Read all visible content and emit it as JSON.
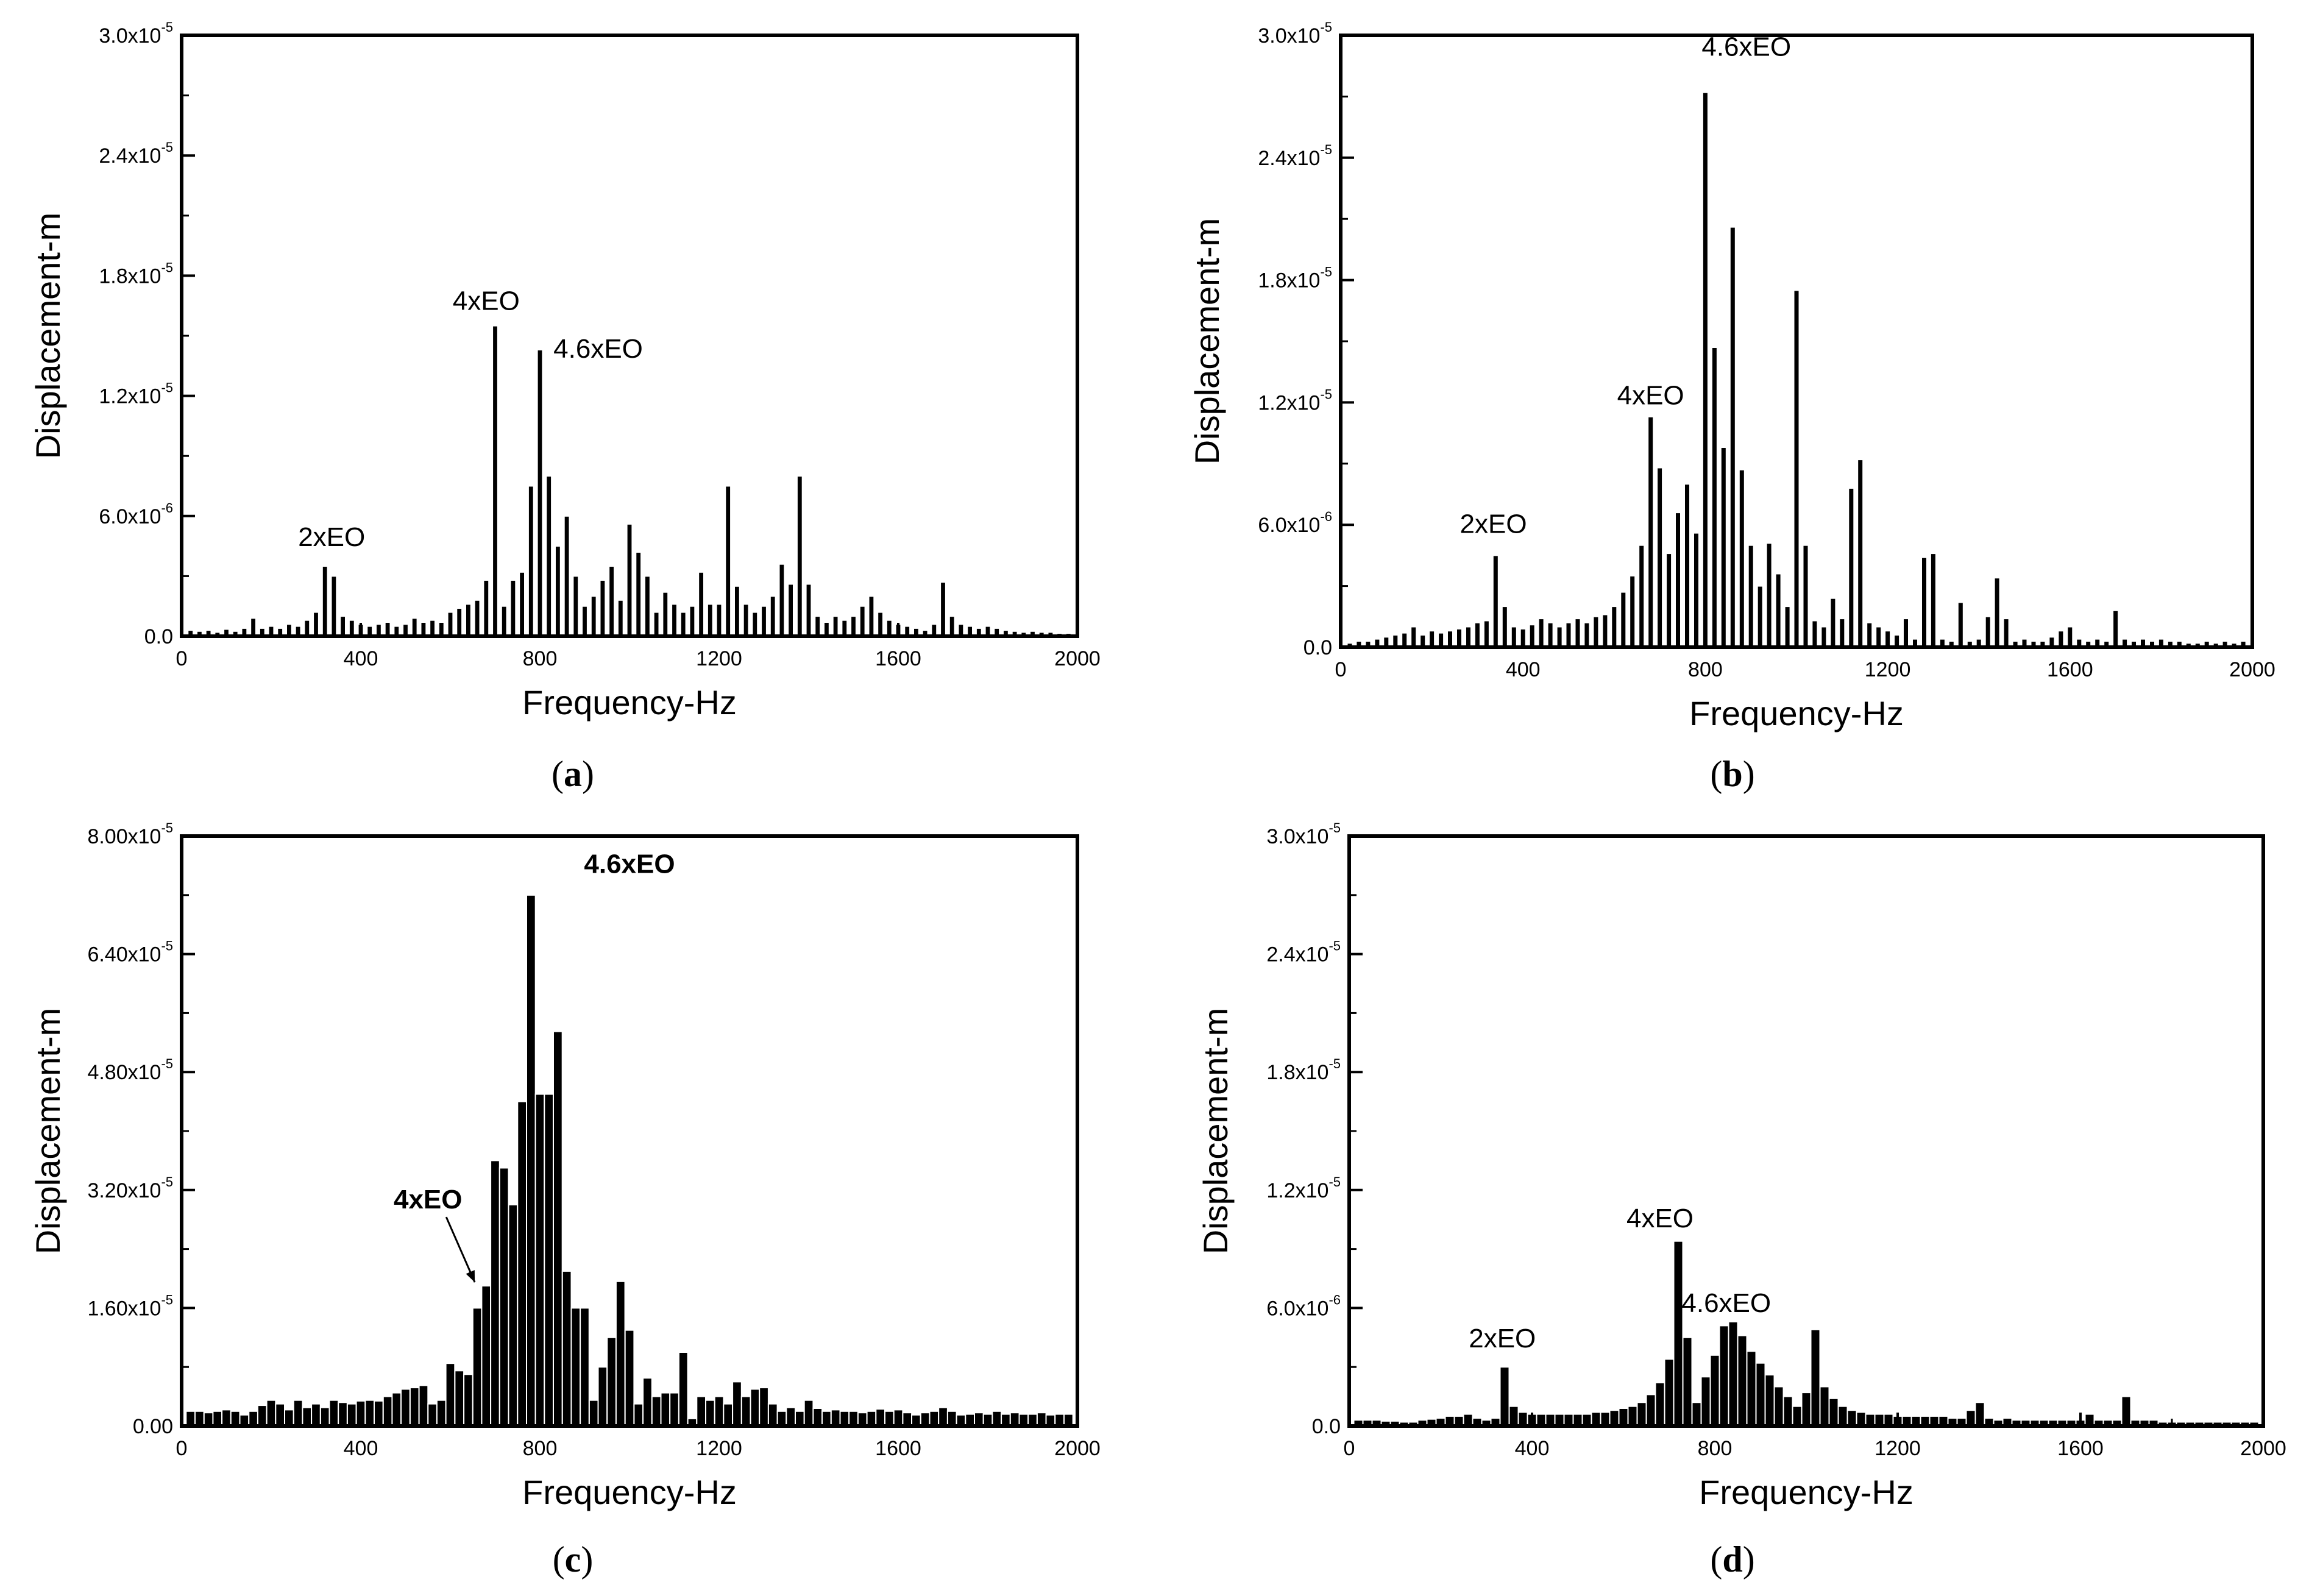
{
  "chart_data": [
    {
      "panel": "a",
      "type": "bar",
      "caption": "a",
      "xlabel": "Frequency-Hz",
      "ylabel": "Displacement-m",
      "xlim": [
        0,
        2000
      ],
      "ylim": [
        0,
        3e-05
      ],
      "xticks": [
        "0",
        "400",
        "800",
        "1200",
        "1600",
        "2000"
      ],
      "yticks": [
        "0.0",
        "6.0x10",
        "1.2x10",
        "1.8x10",
        "2.4x10",
        "3.0x10"
      ],
      "ytick_exponents": [
        "",
        "-6",
        "-5",
        "-5",
        "-5",
        "-5"
      ],
      "bar_width_hz": 12,
      "x": [
        20,
        40,
        60,
        80,
        100,
        120,
        140,
        160,
        180,
        200,
        220,
        240,
        260,
        280,
        300,
        320,
        340,
        360,
        380,
        400,
        420,
        440,
        460,
        480,
        500,
        520,
        540,
        560,
        580,
        600,
        620,
        640,
        660,
        680,
        700,
        720,
        740,
        760,
        780,
        800,
        820,
        840,
        860,
        880,
        900,
        920,
        940,
        960,
        980,
        1000,
        1020,
        1040,
        1060,
        1080,
        1100,
        1120,
        1140,
        1160,
        1180,
        1200,
        1220,
        1240,
        1260,
        1280,
        1300,
        1320,
        1340,
        1360,
        1380,
        1400,
        1420,
        1440,
        1460,
        1480,
        1500,
        1520,
        1540,
        1560,
        1580,
        1600,
        1620,
        1640,
        1660,
        1680,
        1700,
        1720,
        1740,
        1760,
        1780,
        1800,
        1820,
        1840,
        1860,
        1880,
        1900,
        1920,
        1940,
        1960,
        1980
      ],
      "values": [
        3e-07,
        2.5e-07,
        3e-07,
        2e-07,
        3.5e-07,
        2.5e-07,
        4e-07,
        9e-07,
        4e-07,
        5e-07,
        4e-07,
        6e-07,
        5e-07,
        8e-07,
        1.2e-06,
        3.5e-06,
        3e-06,
        1e-06,
        8e-07,
        6e-07,
        5e-07,
        6e-07,
        7e-07,
        5e-07,
        6e-07,
        9e-07,
        7e-07,
        8e-07,
        7e-07,
        1.2e-06,
        1.4e-06,
        1.6e-06,
        1.8e-06,
        2.8e-06,
        1.55e-05,
        1.5e-06,
        2.8e-06,
        3.2e-06,
        7.5e-06,
        1.43e-05,
        8e-06,
        4.5e-06,
        6e-06,
        3e-06,
        1.5e-06,
        2e-06,
        2.8e-06,
        3.5e-06,
        1.8e-06,
        5.6e-06,
        4.2e-06,
        3e-06,
        1.2e-06,
        2.2e-06,
        1.6e-06,
        1.2e-06,
        1.5e-06,
        3.2e-06,
        1.6e-06,
        1.6e-06,
        7.5e-06,
        2.5e-06,
        1.6e-06,
        1.2e-06,
        1.5e-06,
        2e-06,
        3.6e-06,
        2.6e-06,
        8e-06,
        2.6e-06,
        1e-06,
        7e-07,
        1e-06,
        8e-07,
        1e-06,
        1.5e-06,
        2e-06,
        1.2e-06,
        8e-07,
        6e-07,
        5e-07,
        4e-07,
        3e-07,
        6e-07,
        2.7e-06,
        1e-06,
        6e-07,
        5e-07,
        4e-07,
        5e-07,
        4e-07,
        3e-07,
        2.5e-07,
        2e-07,
        2.5e-07,
        2e-07,
        2e-07,
        1.5e-07,
        1.5e-07
      ],
      "annotations": [
        {
          "text": "2xEO",
          "x": 335,
          "y": 4.5e-06
        },
        {
          "text": "4xEO",
          "x": 680,
          "y": 1.63e-05
        },
        {
          "text": "4.6xEO",
          "x": 930,
          "y": 1.39e-05
        }
      ]
    },
    {
      "panel": "b",
      "type": "bar",
      "caption": "b",
      "xlabel": "Frequency-Hz",
      "ylabel": "Displacement-m",
      "xlim": [
        0,
        2000
      ],
      "ylim": [
        0,
        3e-05
      ],
      "xticks": [
        "0",
        "400",
        "800",
        "1200",
        "1600",
        "2000"
      ],
      "yticks": [
        "0.0",
        "6.0x10",
        "1.2x10",
        "1.8x10",
        "2.4x10",
        "3.0x10"
      ],
      "ytick_exponents": [
        "",
        "-6",
        "-5",
        "-5",
        "-5",
        "-5"
      ],
      "bar_width_hz": 12,
      "x": [
        20,
        40,
        60,
        80,
        100,
        120,
        140,
        160,
        180,
        200,
        220,
        240,
        260,
        280,
        300,
        320,
        340,
        360,
        380,
        400,
        420,
        440,
        460,
        480,
        500,
        520,
        540,
        560,
        580,
        600,
        620,
        640,
        660,
        680,
        700,
        720,
        740,
        760,
        780,
        800,
        820,
        840,
        860,
        880,
        900,
        920,
        940,
        960,
        980,
        1000,
        1020,
        1040,
        1060,
        1080,
        1100,
        1120,
        1140,
        1160,
        1180,
        1200,
        1220,
        1240,
        1260,
        1280,
        1300,
        1320,
        1340,
        1360,
        1380,
        1400,
        1420,
        1440,
        1460,
        1480,
        1500,
        1520,
        1540,
        1560,
        1580,
        1600,
        1620,
        1640,
        1660,
        1680,
        1700,
        1720,
        1740,
        1760,
        1780,
        1800,
        1820,
        1840,
        1860,
        1880,
        1900,
        1920,
        1940,
        1960,
        1980
      ],
      "values": [
        2e-07,
        3e-07,
        3e-07,
        4e-07,
        5e-07,
        6e-07,
        7e-07,
        1e-06,
        6e-07,
        8e-07,
        7e-07,
        8e-07,
        9e-07,
        1e-06,
        1.2e-06,
        1.3e-06,
        4.5e-06,
        2e-06,
        1e-06,
        9e-07,
        1.1e-06,
        1.4e-06,
        1.2e-06,
        1e-06,
        1.2e-06,
        1.4e-06,
        1.2e-06,
        1.5e-06,
        1.6e-06,
        2e-06,
        2.7e-06,
        3.5e-06,
        5e-06,
        1.13e-05,
        8.8e-06,
        4.6e-06,
        6.6e-06,
        8e-06,
        5.6e-06,
        2.72e-05,
        1.47e-05,
        9.8e-06,
        2.06e-05,
        8.7e-06,
        5e-06,
        3e-06,
        5.1e-06,
        3.6e-06,
        2e-06,
        1.75e-05,
        5e-06,
        1.3e-06,
        1e-06,
        2.4e-06,
        1.4e-06,
        7.8e-06,
        9.2e-06,
        1.2e-06,
        1e-06,
        8e-07,
        6e-07,
        1.4e-06,
        4e-07,
        4.4e-06,
        4.6e-06,
        4e-07,
        3e-07,
        2.2e-06,
        3e-07,
        4e-07,
        1.5e-06,
        3.4e-06,
        1.4e-06,
        3e-07,
        4e-07,
        3e-07,
        3e-07,
        5e-07,
        8e-07,
        1e-06,
        4e-07,
        3e-07,
        4e-07,
        3e-07,
        1.8e-06,
        4e-07,
        3e-07,
        4e-07,
        3e-07,
        4e-07,
        3e-07,
        3e-07,
        2e-07,
        2e-07,
        3e-07,
        2e-07,
        3e-07,
        2e-07,
        3e-07
      ],
      "annotations": [
        {
          "text": "2xEO",
          "x": 335,
          "y": 5.6e-06
        },
        {
          "text": "4xEO",
          "x": 680,
          "y": 1.19e-05
        },
        {
          "text": "4.6xEO",
          "x": 890,
          "y": 2.9e-05
        }
      ]
    },
    {
      "panel": "c",
      "type": "bar",
      "caption": "c",
      "xlabel": "Frequency-Hz",
      "ylabel": "Displacement-m",
      "xlim": [
        0,
        2000
      ],
      "ylim": [
        0,
        8e-05
      ],
      "xticks": [
        "0",
        "400",
        "800",
        "1200",
        "1600",
        "2000"
      ],
      "yticks": [
        "0.00",
        "1.60x10",
        "3.20x10",
        "4.80x10",
        "6.40x10",
        "8.00x10"
      ],
      "ytick_exponents": [
        "",
        "-5",
        "-5",
        "-5",
        "-5",
        "-5"
      ],
      "bar_width_hz": 20,
      "x": [
        20,
        40,
        60,
        80,
        100,
        120,
        140,
        160,
        180,
        200,
        220,
        240,
        260,
        280,
        300,
        320,
        340,
        360,
        380,
        400,
        420,
        440,
        460,
        480,
        500,
        520,
        540,
        560,
        580,
        600,
        620,
        640,
        660,
        680,
        700,
        720,
        740,
        760,
        780,
        800,
        820,
        840,
        860,
        880,
        900,
        920,
        940,
        960,
        980,
        1000,
        1020,
        1040,
        1060,
        1080,
        1100,
        1120,
        1140,
        1160,
        1180,
        1200,
        1220,
        1240,
        1260,
        1280,
        1300,
        1320,
        1340,
        1360,
        1380,
        1400,
        1420,
        1440,
        1460,
        1480,
        1500,
        1520,
        1540,
        1560,
        1580,
        1600,
        1620,
        1640,
        1660,
        1680,
        1700,
        1720,
        1740,
        1760,
        1780,
        1800,
        1820,
        1840,
        1860,
        1880,
        1900,
        1920,
        1940,
        1960,
        1980
      ],
      "values": [
        2e-06,
        2e-06,
        1.8e-06,
        2e-06,
        2.2e-06,
        2e-06,
        1.5e-06,
        2e-06,
        2.8e-06,
        3.5e-06,
        3e-06,
        2.2e-06,
        3.5e-06,
        2.5e-06,
        3e-06,
        2.5e-06,
        3.5e-06,
        3.2e-06,
        3e-06,
        3.4e-06,
        3.5e-06,
        3.4e-06,
        4e-06,
        4.5e-06,
        5e-06,
        5.2e-06,
        5.5e-06,
        3e-06,
        3.5e-06,
        8.5e-06,
        7.5e-06,
        7e-06,
        1.6e-05,
        1.9e-05,
        3.6e-05,
        3.5e-05,
        3e-05,
        4.4e-05,
        7.2e-05,
        4.5e-05,
        4.5e-05,
        5.35e-05,
        2.1e-05,
        1.6e-05,
        1.6e-05,
        3.5e-06,
        8e-06,
        1.2e-05,
        1.96e-05,
        1.3e-05,
        3e-06,
        6.5e-06,
        4e-06,
        4.5e-06,
        4.5e-06,
        1e-05,
        1e-06,
        4e-06,
        3.5e-06,
        4e-06,
        3e-06,
        6e-06,
        4e-06,
        5e-06,
        5.2e-06,
        3e-06,
        2e-06,
        2.5e-06,
        2e-06,
        3.5e-06,
        2.4e-06,
        2e-06,
        2.2e-06,
        2e-06,
        2e-06,
        1.8e-06,
        2e-06,
        2.3e-06,
        2e-06,
        2.2e-06,
        1.8e-06,
        1.5e-06,
        1.8e-06,
        2e-06,
        2.5e-06,
        2e-06,
        1.5e-06,
        1.6e-06,
        1.8e-06,
        1.6e-06,
        2e-06,
        1.6e-06,
        1.8e-06,
        1.6e-06,
        1.6e-06,
        1.8e-06,
        1.5e-06,
        1.6e-06,
        1.6e-06
      ],
      "annotations": [
        {
          "text": "4xEO",
          "x": 550,
          "y": 2.95e-05,
          "bold": true,
          "arrow_to": [
            660,
            1.9e-05
          ]
        },
        {
          "text": "4.6xEO",
          "x": 1000,
          "y": 7.5e-05,
          "bold": true
        }
      ]
    },
    {
      "panel": "d",
      "type": "bar",
      "caption": "d",
      "xlabel": "Frequency-Hz",
      "ylabel": "Displacement-m",
      "xlim": [
        0,
        2000
      ],
      "ylim": [
        0,
        3e-05
      ],
      "xticks": [
        "0",
        "400",
        "800",
        "1200",
        "1600",
        "2000"
      ],
      "yticks": [
        "0.0",
        "6.0x10",
        "1.2x10",
        "1.8x10",
        "2.4x10",
        "3.0x10"
      ],
      "ytick_exponents": [
        "",
        "-6",
        "-5",
        "-5",
        "-5",
        "-5"
      ],
      "bar_width_hz": 20,
      "x": [
        20,
        40,
        60,
        80,
        100,
        120,
        140,
        160,
        180,
        200,
        220,
        240,
        260,
        280,
        300,
        320,
        340,
        360,
        380,
        400,
        420,
        440,
        460,
        480,
        500,
        520,
        540,
        560,
        580,
        600,
        620,
        640,
        660,
        680,
        700,
        720,
        740,
        760,
        780,
        800,
        820,
        840,
        860,
        880,
        900,
        920,
        940,
        960,
        980,
        1000,
        1020,
        1040,
        1060,
        1080,
        1100,
        1120,
        1140,
        1160,
        1180,
        1200,
        1220,
        1240,
        1260,
        1280,
        1300,
        1320,
        1340,
        1360,
        1380,
        1400,
        1420,
        1440,
        1460,
        1480,
        1500,
        1520,
        1540,
        1560,
        1580,
        1600,
        1620,
        1640,
        1660,
        1680,
        1700,
        1720,
        1740,
        1760,
        1780,
        1800,
        1820,
        1840,
        1860,
        1880,
        1900,
        1920,
        1940,
        1960,
        1980
      ],
      "values": [
        3e-07,
        3e-07,
        3e-07,
        2.5e-07,
        2.5e-07,
        2e-07,
        2e-07,
        3e-07,
        3.5e-07,
        4e-07,
        5e-07,
        5e-07,
        6e-07,
        4e-07,
        3e-07,
        4e-07,
        3e-06,
        1e-06,
        7e-07,
        6e-07,
        6e-07,
        6e-07,
        6e-07,
        6e-07,
        6e-07,
        6e-07,
        7e-07,
        7e-07,
        8e-07,
        9e-07,
        1e-06,
        1.2e-06,
        1.6e-06,
        2.2e-06,
        3.4e-06,
        9.4e-06,
        4.5e-06,
        1.2e-06,
        2.5e-06,
        3.6e-06,
        5.1e-06,
        5.3e-06,
        4.6e-06,
        3.8e-06,
        3.2e-06,
        2.6e-06,
        2e-06,
        1.5e-06,
        1e-06,
        1.7e-06,
        4.9e-06,
        2e-06,
        1.4e-06,
        1e-06,
        8e-07,
        7e-07,
        6e-07,
        6e-07,
        6e-07,
        5e-07,
        5e-07,
        5e-07,
        5e-07,
        5e-07,
        5e-07,
        4e-07,
        4e-07,
        8e-07,
        1.2e-06,
        4e-07,
        3e-07,
        4e-07,
        3e-07,
        3e-07,
        3e-07,
        3e-07,
        3e-07,
        3e-07,
        3e-07,
        3e-07,
        6e-07,
        3e-07,
        3e-07,
        3e-07,
        1.5e-06,
        3e-07,
        3e-07,
        3e-07,
        2e-07,
        2e-07,
        2e-07,
        2e-07,
        2e-07,
        2e-07,
        2e-07,
        2e-07,
        2e-07,
        2e-07,
        2e-07
      ],
      "annotations": [
        {
          "text": "2xEO",
          "x": 335,
          "y": 4e-06
        },
        {
          "text": "4xEO",
          "x": 680,
          "y": 1.01e-05
        },
        {
          "text": "4.6xEO",
          "x": 825,
          "y": 5.8e-06
        }
      ]
    }
  ]
}
